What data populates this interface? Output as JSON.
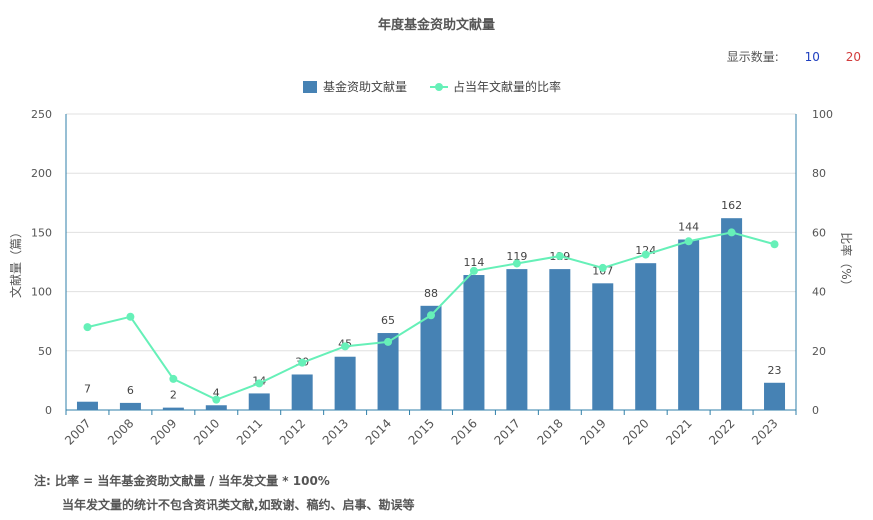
{
  "header": {
    "display_count_label": "显示数量:",
    "option_10": "10",
    "option_20": "20"
  },
  "chart_data": {
    "type": "bar",
    "title": "年度基金资助文献量",
    "categories": [
      "2007",
      "2008",
      "2009",
      "2010",
      "2011",
      "2012",
      "2013",
      "2014",
      "2015",
      "2016",
      "2017",
      "2018",
      "2019",
      "2020",
      "2021",
      "2022",
      "2023"
    ],
    "series": [
      {
        "name": "基金资助文献量",
        "type": "bar",
        "axis": "left",
        "values": [
          7,
          6,
          2,
          4,
          14,
          30,
          45,
          65,
          88,
          114,
          119,
          119,
          107,
          124,
          144,
          162,
          23
        ],
        "color": "#4682b4"
      },
      {
        "name": "占当年文献量的比率",
        "type": "line",
        "axis": "right",
        "values": [
          28,
          31.5,
          10.5,
          3.5,
          9,
          16,
          21.5,
          23,
          32,
          47,
          49.5,
          52,
          48,
          52.5,
          57,
          60,
          56
        ],
        "color": "#66f0b8"
      }
    ],
    "ylabel_left": "文献量（篇）",
    "ylabel_right": "比率（%）",
    "ylim_left": [
      0,
      250
    ],
    "ylim_right": [
      0,
      100
    ],
    "yticks_left": [
      "0",
      "50",
      "100",
      "150",
      "200",
      "250"
    ],
    "yticks_right": [
      "0",
      "20",
      "40",
      "60",
      "80",
      "100"
    ],
    "grid": true,
    "legend": "top-center",
    "axis_color": "#2f7fa8",
    "grid_color": "#e0e0e0"
  },
  "notes": {
    "line1": "注:   比率 = 当年基金资助文献量 / 当年发文量 * 100%",
    "line2": "当年发文量的统计不包含资讯类文献,如致谢、稿约、启事、勘误等"
  }
}
